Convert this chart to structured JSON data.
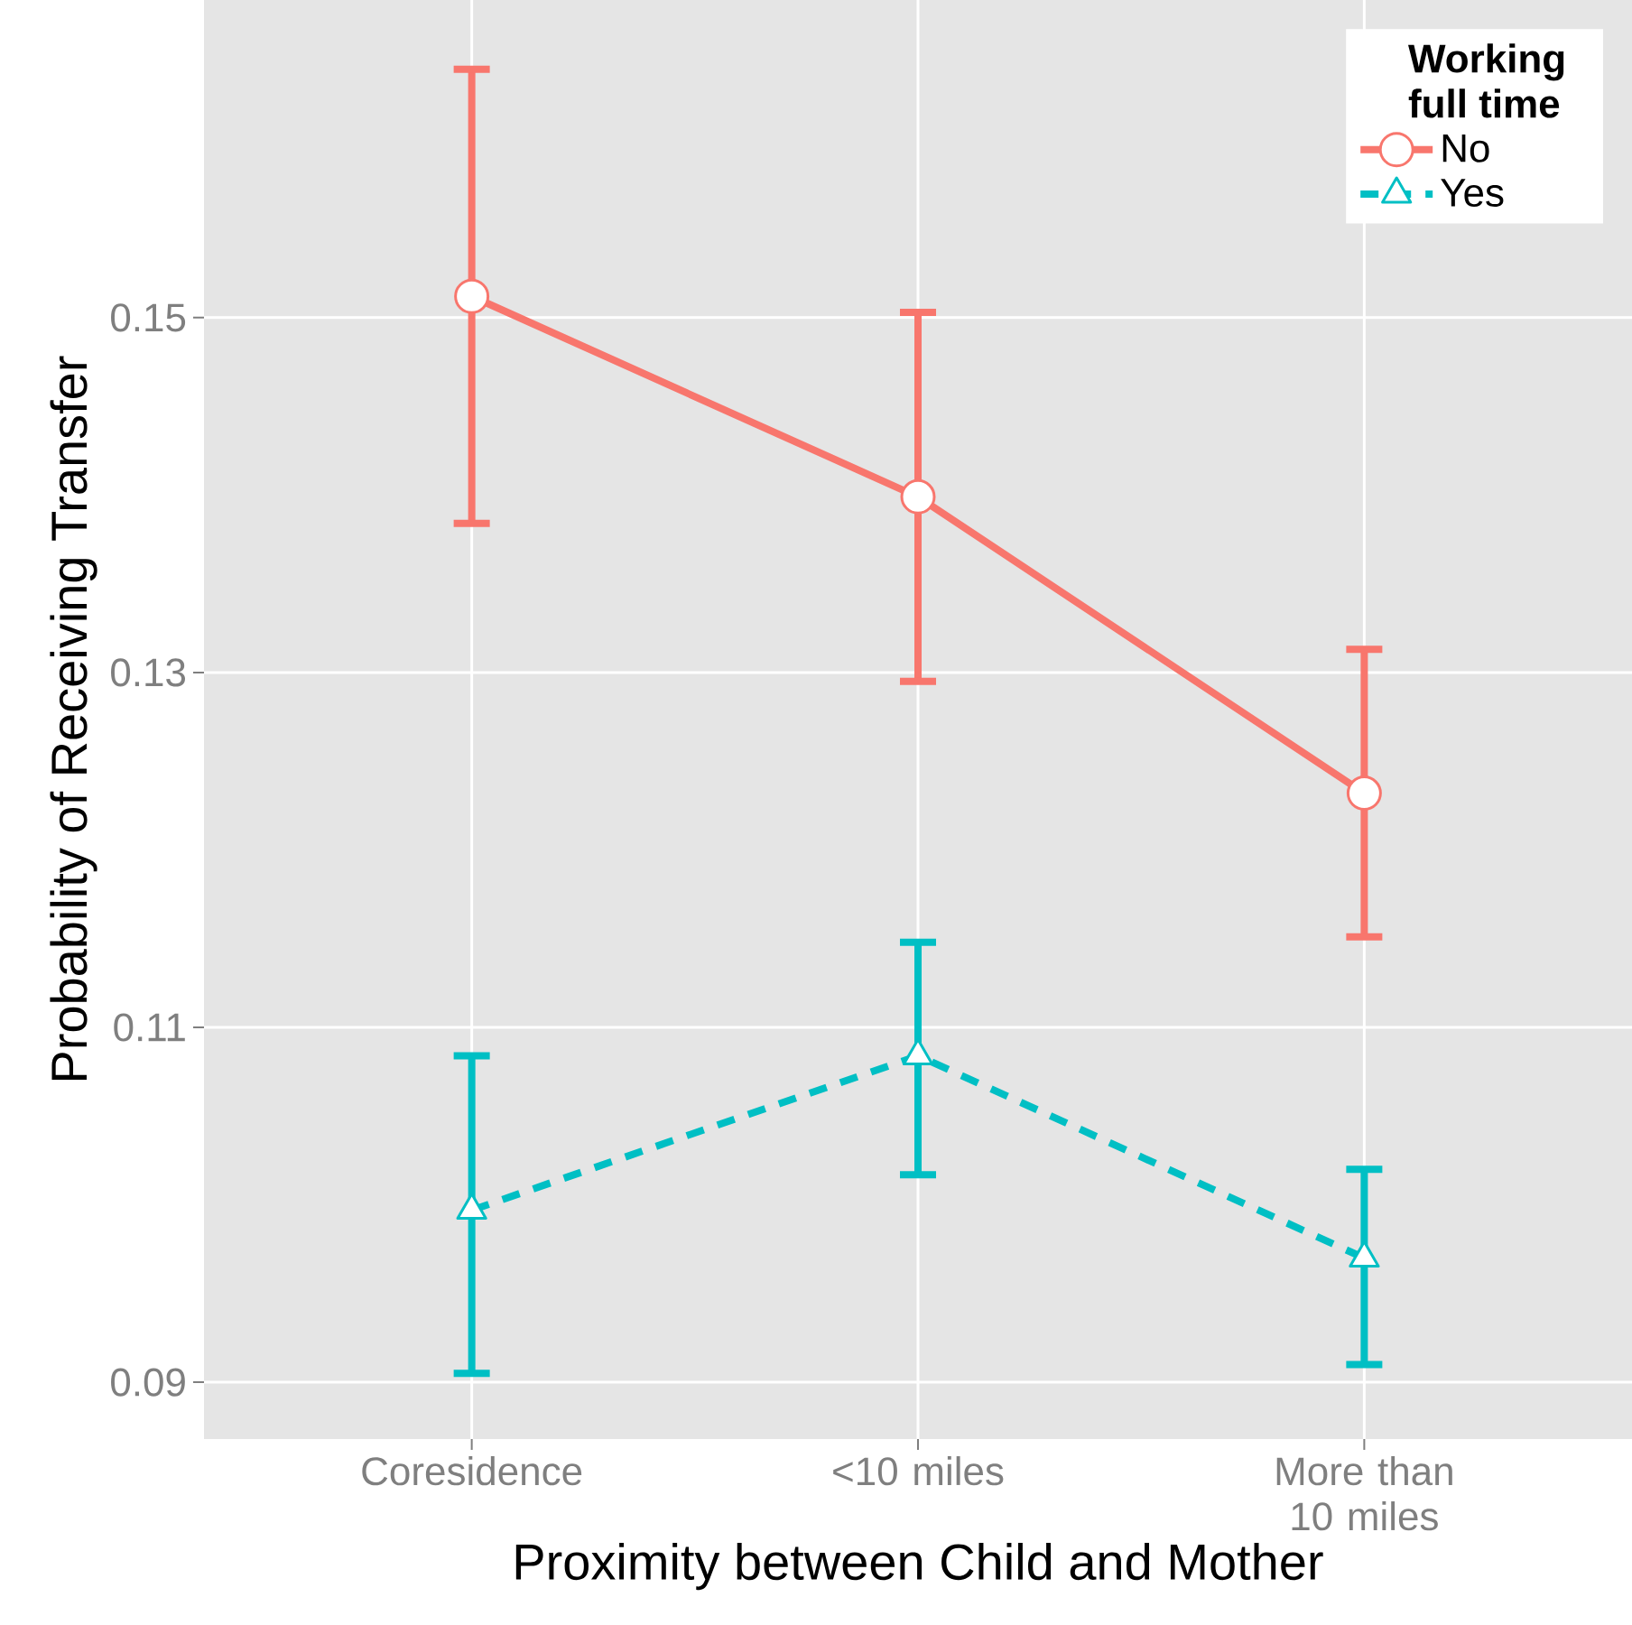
{
  "chart_data": {
    "type": "line",
    "xlabel": "Proximity between Child and Mother",
    "ylabel": "Probability of Receiving Transfer",
    "legend_title": "Working full time",
    "categories": [
      "Coresidence",
      "<10 miles",
      "More than 10 miles"
    ],
    "series": [
      {
        "name": "No",
        "color": "#f8766d",
        "marker": "circle",
        "line_style": "solid",
        "values": [
          0.1512,
          0.1399,
          0.1232
        ],
        "errors": [
          [
            0.1384,
            0.164
          ],
          [
            0.1295,
            0.1503
          ],
          [
            0.1151,
            0.1313
          ]
        ]
      },
      {
        "name": "Yes",
        "color": "#00bfc4",
        "marker": "triangle",
        "line_style": "dashed",
        "values": [
          0.0997,
          0.1084,
          0.097
        ],
        "errors": [
          [
            0.0905,
            0.1084
          ],
          [
            0.1017,
            0.1148
          ],
          [
            0.091,
            0.102
          ]
        ]
      }
    ],
    "ylim": [
      0.0868,
      0.1679
    ],
    "yticks": [
      0.09,
      0.11,
      0.13,
      0.15
    ],
    "grid": true,
    "legend": "top right"
  }
}
